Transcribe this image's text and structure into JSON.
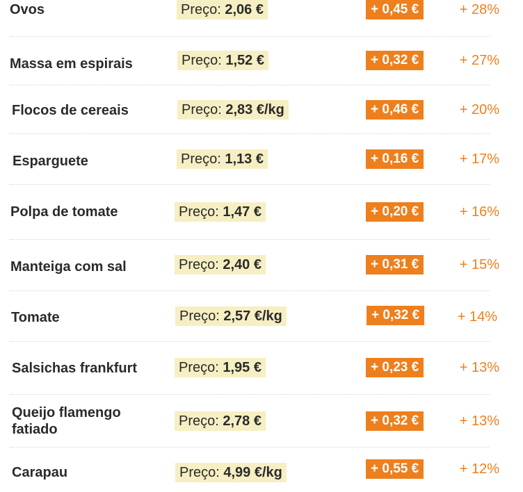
{
  "price_prefix": "Preço:",
  "colors": {
    "price_highlight": "#f5efc3",
    "increase_badge": "#ee7f1d",
    "percent_text": "#ee7f1d"
  },
  "items": [
    {
      "name": "Ovos",
      "price": "2,06 €",
      "increase": "+ 0,45 €",
      "percent": "+ 28%"
    },
    {
      "name": "Massa em espirais",
      "price": "1,52 €",
      "increase": "+ 0,32 €",
      "percent": "+ 27%"
    },
    {
      "name": "Flocos de cereais",
      "price": "2,83 €/kg",
      "increase": "+ 0,46 €",
      "percent": "+ 20%"
    },
    {
      "name": "Esparguete",
      "price": "1,13 €",
      "increase": "+ 0,16 €",
      "percent": "+ 17%"
    },
    {
      "name": "Polpa de tomate",
      "price": "1,47 €",
      "increase": "+ 0,20 €",
      "percent": "+ 16%"
    },
    {
      "name": "Manteiga com sal",
      "price": "2,40 €",
      "increase": "+ 0,31 €",
      "percent": "+ 15%"
    },
    {
      "name": "Tomate",
      "price": "2,57 €/kg",
      "increase": "+ 0,32 €",
      "percent": "+ 14%"
    },
    {
      "name": "Salsichas frankfurt",
      "price": "1,95 €",
      "increase": "+ 0,23 €",
      "percent": "+ 13%"
    },
    {
      "name": "Queijo flamengo fatiado",
      "price": "2,78 €",
      "increase": "+ 0,32 €",
      "percent": "+ 13%"
    },
    {
      "name": "Carapau",
      "price": "4,99 €/kg",
      "increase": "+ 0,55 €",
      "percent": "+ 12%"
    }
  ]
}
